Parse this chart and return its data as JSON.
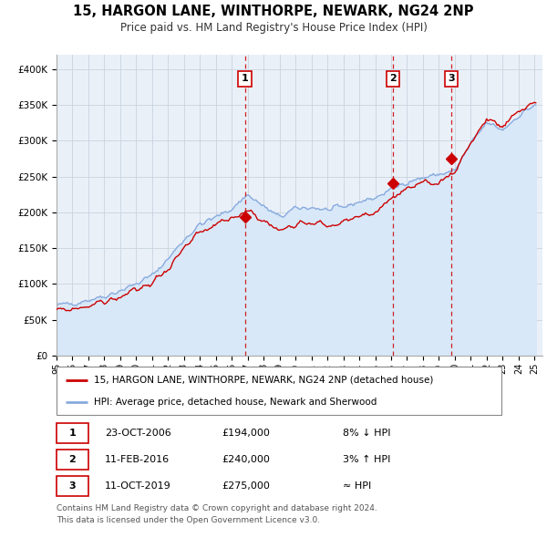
{
  "title": "15, HARGON LANE, WINTHORPE, NEWARK, NG24 2NP",
  "subtitle": "Price paid vs. HM Land Registry's House Price Index (HPI)",
  "legend_line1": "15, HARGON LANE, WINTHORPE, NEWARK, NG24 2NP (detached house)",
  "legend_line2": "HPI: Average price, detached house, Newark and Sherwood",
  "footer1": "Contains HM Land Registry data © Crown copyright and database right 2024.",
  "footer2": "This data is licensed under the Open Government Licence v3.0.",
  "sale_color": "#cc0000",
  "hpi_color": "#88aadd",
  "hpi_fill_color": "#d8e8f8",
  "background_color": "#ffffff",
  "plot_bg_color": "#eaf0f8",
  "grid_color": "#c8d4e0",
  "ylim": [
    0,
    420000
  ],
  "yticks": [
    0,
    50000,
    100000,
    150000,
    200000,
    250000,
    300000,
    350000,
    400000
  ],
  "ytick_labels": [
    "£0",
    "£50K",
    "£100K",
    "£150K",
    "£200K",
    "£250K",
    "£300K",
    "£350K",
    "£400K"
  ],
  "sale_prices": [
    194000,
    240000,
    275000
  ],
  "sale_labels": [
    "1",
    "2",
    "3"
  ],
  "sale_notes": [
    "8% ↓ HPI",
    "3% ↑ HPI",
    "≈ HPI"
  ],
  "sale_display_dates": [
    "23-OCT-2006",
    "11-FEB-2016",
    "11-OCT-2019"
  ],
  "sale_price_labels": [
    "£194,000",
    "£240,000",
    "£275,000"
  ],
  "sale_year_floats": [
    2006.82,
    2016.12,
    2019.79
  ],
  "hpi_base": {
    "years": [
      1995,
      1996,
      1997,
      1998,
      1999,
      2000,
      2001,
      2002,
      2003,
      2004,
      2005,
      2006,
      2007,
      2008,
      2009,
      2010,
      2011,
      2012,
      2013,
      2014,
      2015,
      2016,
      2017,
      2018,
      2019,
      2020,
      2021,
      2022,
      2023,
      2024,
      2025
    ],
    "vals": [
      70000,
      73000,
      78000,
      83000,
      91000,
      100000,
      112000,
      135000,
      162000,
      183000,
      193000,
      205000,
      225000,
      208000,
      193000,
      205000,
      207000,
      203000,
      207000,
      215000,
      220000,
      232000,
      243000,
      248000,
      253000,
      258000,
      295000,
      325000,
      315000,
      335000,
      350000
    ]
  },
  "sale_base": {
    "years": [
      1995,
      1996,
      1997,
      1998,
      1999,
      2000,
      2001,
      2002,
      2003,
      2004,
      2005,
      2006,
      2007,
      2008,
      2009,
      2010,
      2011,
      2012,
      2013,
      2014,
      2015,
      2016,
      2017,
      2018,
      2019,
      2020,
      2021,
      2022,
      2023,
      2024,
      2025
    ],
    "vals": [
      62000,
      65000,
      70000,
      75000,
      82000,
      91000,
      102000,
      122000,
      148000,
      170000,
      181000,
      191000,
      205000,
      188000,
      174000,
      186000,
      188000,
      181000,
      185000,
      194000,
      200000,
      220000,
      232000,
      237000,
      242000,
      258000,
      298000,
      330000,
      318000,
      340000,
      355000
    ]
  },
  "noise_scale_hpi": 3500,
  "noise_scale_sale": 5000,
  "noise_smooth_hpi": 4,
  "noise_smooth_sale": 5
}
